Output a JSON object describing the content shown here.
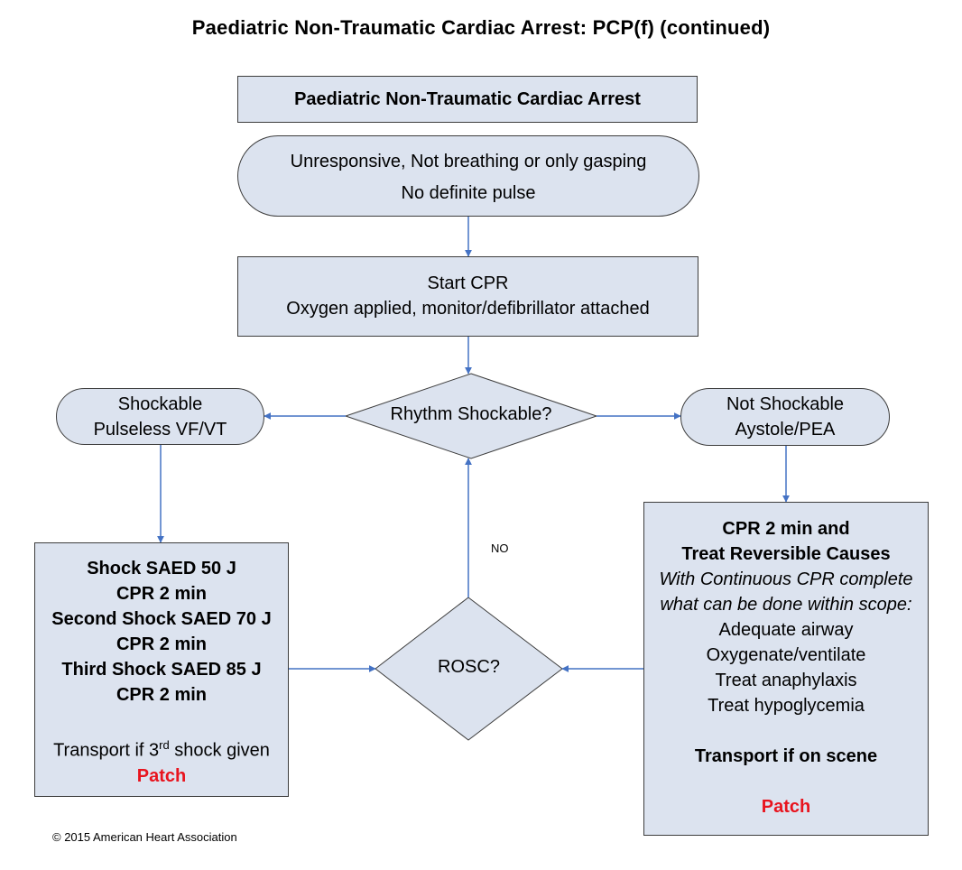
{
  "title": "Paediatric Non-Traumatic Cardiac Arrest: PCP(f) (continued)",
  "header_box": "Paediatric Non-Traumatic Cardiac Arrest",
  "unresponsive": {
    "line1": "Unresponsive, Not breathing or only gasping",
    "line2": "No definite pulse"
  },
  "start_cpr": {
    "line1": "Start CPR",
    "line2": "Oxygen applied, monitor/defibrillator attached"
  },
  "rhythm_decision": "Rhythm Shockable?",
  "shockable": {
    "line1": "Shockable",
    "line2": "Pulseless VF/VT"
  },
  "not_shockable": {
    "line1": "Not Shockable",
    "line2": "Aystole/PEA"
  },
  "shock_box": {
    "lines": [
      "Shock SAED 50 J",
      "CPR 2 min",
      "Second Shock SAED 70 J",
      "CPR 2 min",
      "Third Shock SAED 85 J",
      "CPR 2 min"
    ],
    "transport_prefix": "Transport if 3",
    "transport_sup": "rd",
    "transport_suffix": " shock given",
    "patch": "Patch"
  },
  "rosc_decision": "ROSC?",
  "no_label": "NO",
  "cpr_box": {
    "heading1": "CPR 2 min and",
    "heading2": "Treat Reversible Causes",
    "italic1": "With Continuous CPR complete",
    "italic2": "what can be done within scope:",
    "items": [
      "Adequate airway",
      "Oxygenate/ventilate",
      "Treat anaphylaxis",
      "Treat hypoglycemia"
    ],
    "transport": "Transport if on scene",
    "patch": "Patch"
  },
  "copyright": "© 2015 American Heart Association",
  "colors": {
    "fill": "#dce3ef",
    "arrow": "#4472c4",
    "patch": "#e8141e"
  }
}
